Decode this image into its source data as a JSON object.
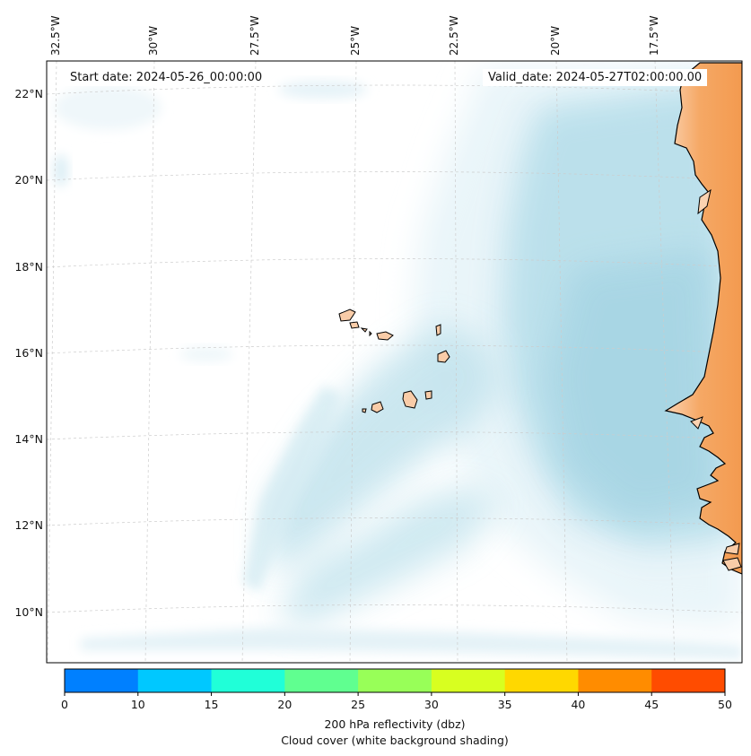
{
  "annotations": {
    "start_date": "Start date: 2024-05-26_00:00:00",
    "valid_date": "Valid_date: 2024-05-27T02:00:00.00"
  },
  "longitude_labels": [
    "32.5°W",
    "30°W",
    "27.5°W",
    "25°W",
    "22.5°W",
    "20°W",
    "17.5°W"
  ],
  "latitude_labels": [
    "22°N",
    "20°N",
    "18°N",
    "16°N",
    "14°N",
    "12°N",
    "10°N"
  ],
  "colorbar": {
    "ticks": [
      "0",
      "10",
      "15",
      "20",
      "25",
      "30",
      "35",
      "40",
      "45",
      "50"
    ],
    "colors": [
      "#0080ff",
      "#00c8ff",
      "#20ffd8",
      "#60ff90",
      "#98ff58",
      "#d8ff20",
      "#ffd800",
      "#ff8c00",
      "#ff4c00"
    ],
    "label": "200 hPa reflectivity (dbz)",
    "sublabel": "Cloud cover (white background shading)"
  },
  "colors": {
    "cloud": "#aad8e6",
    "land": "#f5a25d",
    "island": "#f9cca8",
    "coastline": "#000000",
    "gridline": "#cccccc"
  }
}
